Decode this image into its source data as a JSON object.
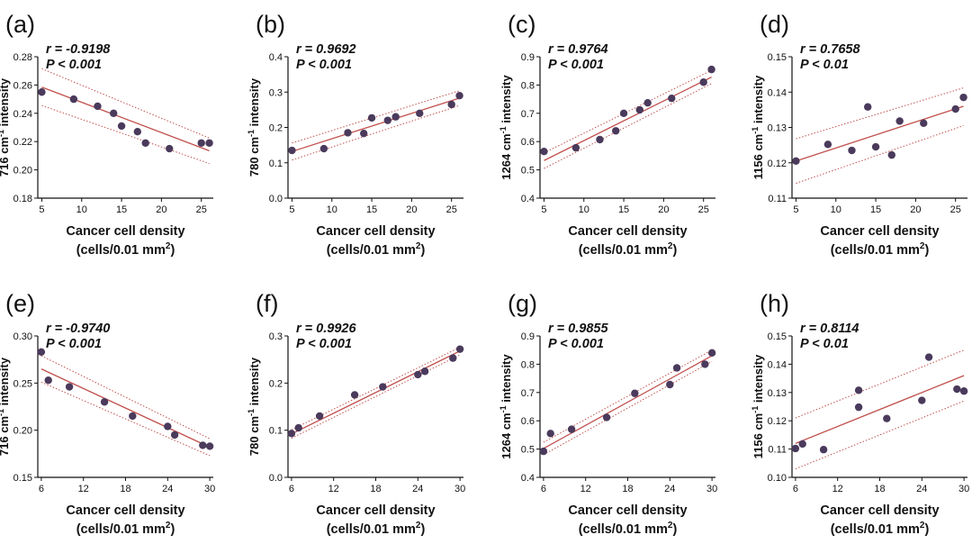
{
  "chart_data": [
    {
      "panel": "(a)",
      "type": "scatter",
      "r_label": "r = -0.9198",
      "p_label": "P < 0.001",
      "ylabel": "716 cm-1 intensity",
      "ylabel_main": "716 cm",
      "ylabel_sup": "-1",
      "ylabel_tail": " intensity",
      "xlabel_line1": "Cancer cell density",
      "xlabel_line2": "(cells/0.01 mm",
      "xlabel_sup": "2",
      "xlabel_tail": ")",
      "xlim": [
        4.5,
        26.5
      ],
      "ylim": [
        0.18,
        0.28
      ],
      "xticks": [
        5,
        10,
        15,
        20,
        25
      ],
      "xtick_labels": [
        "5",
        "10",
        "15",
        "20",
        "25"
      ],
      "yticks": [
        0.18,
        0.2,
        0.22,
        0.24,
        0.26,
        0.28
      ],
      "ytick_labels": [
        "0.18",
        "0.20",
        "0.22",
        "0.24",
        "0.26",
        "0.28"
      ],
      "x": [
        5,
        9,
        12,
        14,
        15,
        17,
        18,
        21,
        25,
        26
      ],
      "y": [
        0.255,
        0.25,
        0.245,
        0.24,
        0.231,
        0.227,
        0.219,
        0.215,
        0.219,
        0.219
      ],
      "fit": [
        0.2585,
        0.2135
      ],
      "ci_lower": [
        0.2455,
        0.2045
      ],
      "ci_upper": [
        0.2715,
        0.2225
      ]
    },
    {
      "panel": "(b)",
      "type": "scatter",
      "r_label": "r = 0.9692",
      "p_label": "P < 0.001",
      "ylabel": "780 cm-1 intensity",
      "ylabel_main": "780 cm",
      "ylabel_sup": "-1",
      "ylabel_tail": " intensity",
      "xlabel_line1": "Cancer cell density",
      "xlabel_line2": "(cells/0.01 mm",
      "xlabel_sup": "2",
      "xlabel_tail": ")",
      "xlim": [
        4.5,
        26.5
      ],
      "ylim": [
        0,
        0.4
      ],
      "xticks": [
        5,
        10,
        15,
        20,
        25
      ],
      "xtick_labels": [
        "5",
        "10",
        "15",
        "20",
        "25"
      ],
      "yticks": [
        0,
        0.1,
        0.2,
        0.3,
        0.4
      ],
      "ytick_labels": [
        "0.0",
        "0.1",
        "0.2",
        "0.3",
        "0.4"
      ],
      "x": [
        5,
        9,
        12,
        14,
        15,
        17,
        18,
        21,
        25,
        26
      ],
      "y": [
        0.135,
        0.14,
        0.185,
        0.183,
        0.227,
        0.22,
        0.23,
        0.24,
        0.265,
        0.29
      ],
      "fit": [
        0.132,
        0.283
      ],
      "ci_lower": [
        0.108,
        0.262
      ],
      "ci_upper": [
        0.156,
        0.304
      ]
    },
    {
      "panel": "(c)",
      "type": "scatter",
      "r_label": "r = 0.9764",
      "p_label": "P < 0.001",
      "ylabel": "1264 cm-1 intensity",
      "ylabel_main": "1264 cm",
      "ylabel_sup": "-1",
      "ylabel_tail": " intensity",
      "xlabel_line1": "Cancer cell density",
      "xlabel_line2": "(cells/0.01 mm",
      "xlabel_sup": "2",
      "xlabel_tail": ")",
      "xlim": [
        4.5,
        26.5
      ],
      "ylim": [
        0.4,
        0.9
      ],
      "xticks": [
        5,
        10,
        15,
        20,
        25
      ],
      "xtick_labels": [
        "5",
        "10",
        "15",
        "20",
        "25"
      ],
      "yticks": [
        0.4,
        0.5,
        0.6,
        0.7,
        0.8,
        0.9
      ],
      "ytick_labels": [
        "0.4",
        "0.5",
        "0.6",
        "0.7",
        "0.8",
        "0.9"
      ],
      "x": [
        5,
        9,
        12,
        14,
        15,
        17,
        18,
        21,
        25,
        26
      ],
      "y": [
        0.565,
        0.578,
        0.607,
        0.638,
        0.7,
        0.712,
        0.737,
        0.753,
        0.81,
        0.855
      ],
      "fit": [
        0.533,
        0.828
      ],
      "ci_lower": [
        0.505,
        0.805
      ],
      "ci_upper": [
        0.56,
        0.852
      ]
    },
    {
      "panel": "(d)",
      "type": "scatter",
      "r_label": "r = 0.7658",
      "p_label": "P < 0.01",
      "ylabel": "1156 cm-1 intensity",
      "ylabel_main": "1156 cm",
      "ylabel_sup": "-1",
      "ylabel_tail": " intensity",
      "xlabel_line1": "Cancer cell density",
      "xlabel_line2": "(cells/0.01 mm",
      "xlabel_sup": "2",
      "xlabel_tail": ")",
      "xlim": [
        4.5,
        26.5
      ],
      "ylim": [
        0.11,
        0.15
      ],
      "xticks": [
        5,
        10,
        15,
        20,
        25
      ],
      "xtick_labels": [
        "5",
        "10",
        "15",
        "20",
        "25"
      ],
      "yticks": [
        0.11,
        0.12,
        0.13,
        0.14,
        0.15
      ],
      "ytick_labels": [
        "0.11",
        "0.12",
        "0.13",
        "0.14",
        "0.15"
      ],
      "x": [
        5,
        9,
        12,
        14,
        15,
        17,
        18,
        21,
        25,
        26
      ],
      "y": [
        0.1205,
        0.1252,
        0.1235,
        0.1358,
        0.1245,
        0.1222,
        0.1318,
        0.1312,
        0.1352,
        0.1385
      ],
      "fit": [
        0.1205,
        0.136
      ],
      "ci_lower": [
        0.1142,
        0.1305
      ],
      "ci_upper": [
        0.1268,
        0.1412
      ]
    },
    {
      "panel": "(e)",
      "type": "scatter",
      "r_label": "r = -0.9740",
      "p_label": "P < 0.001",
      "ylabel": "716 cm-1 intensity",
      "ylabel_main": "716 cm",
      "ylabel_sup": "-1",
      "ylabel_tail": " intensity",
      "xlabel_line1": "Cancer cell density",
      "xlabel_line2": "(cells/0.01 mm",
      "xlabel_sup": "2",
      "xlabel_tail": ")",
      "xlim": [
        5.5,
        30.5
      ],
      "ylim": [
        0.15,
        0.3
      ],
      "xticks": [
        6,
        12,
        18,
        24,
        30
      ],
      "xtick_labels": [
        "6",
        "12",
        "18",
        "24",
        "30"
      ],
      "yticks": [
        0.15,
        0.2,
        0.25,
        0.3
      ],
      "ytick_labels": [
        "0.15",
        "0.20",
        "0.25",
        "0.30"
      ],
      "x": [
        6,
        7,
        10,
        15,
        19,
        24,
        25,
        29,
        30
      ],
      "y": [
        0.283,
        0.253,
        0.246,
        0.23,
        0.215,
        0.204,
        0.195,
        0.184,
        0.183
      ],
      "fit": [
        0.265,
        0.182
      ],
      "ci_lower": [
        0.251,
        0.173
      ],
      "ci_upper": [
        0.279,
        0.191
      ]
    },
    {
      "panel": "(f)",
      "type": "scatter",
      "r_label": "r = 0.9926",
      "p_label": "P < 0.001",
      "ylabel": "780 cm-1 intensity",
      "ylabel_main": "780 cm",
      "ylabel_sup": "-1",
      "ylabel_tail": " intensity",
      "xlabel_line1": "Cancer cell density",
      "xlabel_line2": "(cells/0.01 mm",
      "xlabel_sup": "2",
      "xlabel_tail": ")",
      "xlim": [
        5.5,
        30.5
      ],
      "ylim": [
        0,
        0.3
      ],
      "xticks": [
        6,
        12,
        18,
        24,
        30
      ],
      "xtick_labels": [
        "6",
        "12",
        "18",
        "24",
        "30"
      ],
      "yticks": [
        0,
        0.1,
        0.2,
        0.3
      ],
      "ytick_labels": [
        "0.0",
        "0.1",
        "0.2",
        "0.3"
      ],
      "x": [
        6,
        7,
        10,
        15,
        19,
        24,
        25,
        29,
        30
      ],
      "y": [
        0.093,
        0.105,
        0.13,
        0.175,
        0.192,
        0.218,
        0.225,
        0.253,
        0.272
      ],
      "fit": [
        0.092,
        0.268
      ],
      "ci_lower": [
        0.083,
        0.26
      ],
      "ci_upper": [
        0.101,
        0.276
      ]
    },
    {
      "panel": "(g)",
      "type": "scatter",
      "r_label": "r = 0.9855",
      "p_label": "P < 0.001",
      "ylabel": "1264 cm-1 intensity",
      "ylabel_main": "1264 cm",
      "ylabel_sup": "-1",
      "ylabel_tail": " intensity",
      "xlabel_line1": "Cancer cell density",
      "xlabel_line2": "(cells/0.01 mm",
      "xlabel_sup": "2",
      "xlabel_tail": ")",
      "xlim": [
        5.5,
        30.5
      ],
      "ylim": [
        0.4,
        0.9
      ],
      "xticks": [
        6,
        12,
        18,
        24,
        30
      ],
      "xtick_labels": [
        "6",
        "12",
        "18",
        "24",
        "30"
      ],
      "yticks": [
        0.4,
        0.5,
        0.6,
        0.7,
        0.8,
        0.9
      ],
      "ytick_labels": [
        "0.4",
        "0.5",
        "0.6",
        "0.7",
        "0.8",
        "0.9"
      ],
      "x": [
        6,
        7,
        10,
        15,
        19,
        24,
        25,
        29,
        30
      ],
      "y": [
        0.492,
        0.555,
        0.57,
        0.612,
        0.697,
        0.728,
        0.787,
        0.8,
        0.84
      ],
      "fit": [
        0.502,
        0.83
      ],
      "ci_lower": [
        0.48,
        0.81
      ],
      "ci_upper": [
        0.524,
        0.85
      ]
    },
    {
      "panel": "(h)",
      "type": "scatter",
      "r_label": "r = 0.8114",
      "p_label": "P < 0.01",
      "ylabel": "1156 cm-1 intensity",
      "ylabel_main": "1156 cm",
      "ylabel_sup": "-1",
      "ylabel_tail": " intensity",
      "xlabel_line1": "Cancer cell density",
      "xlabel_line2": "(cells/0.01 mm",
      "xlabel_sup": "2",
      "xlabel_tail": ")",
      "xlim": [
        5.5,
        30.5
      ],
      "ylim": [
        0.1,
        0.15
      ],
      "xticks": [
        6,
        12,
        18,
        24,
        30
      ],
      "xtick_labels": [
        "6",
        "12",
        "18",
        "24",
        "30"
      ],
      "yticks": [
        0.1,
        0.11,
        0.12,
        0.13,
        0.14,
        0.15
      ],
      "ytick_labels": [
        "0.10",
        "0.11",
        "0.12",
        "0.13",
        "0.14",
        "0.15"
      ],
      "x": [
        6,
        7,
        10,
        15,
        15,
        19,
        24,
        25,
        29,
        30
      ],
      "y": [
        0.1102,
        0.1118,
        0.1098,
        0.1248,
        0.1308,
        0.1208,
        0.1272,
        0.1425,
        0.1312,
        0.1305
      ],
      "fit": [
        0.112,
        0.136
      ],
      "ci_lower": [
        0.103,
        0.127
      ],
      "ci_upper": [
        0.121,
        0.145
      ]
    }
  ],
  "colors": {
    "points": "#4a3a5c",
    "fit": "#c0504d",
    "ci": "#c0504d",
    "axis": "#111111"
  }
}
